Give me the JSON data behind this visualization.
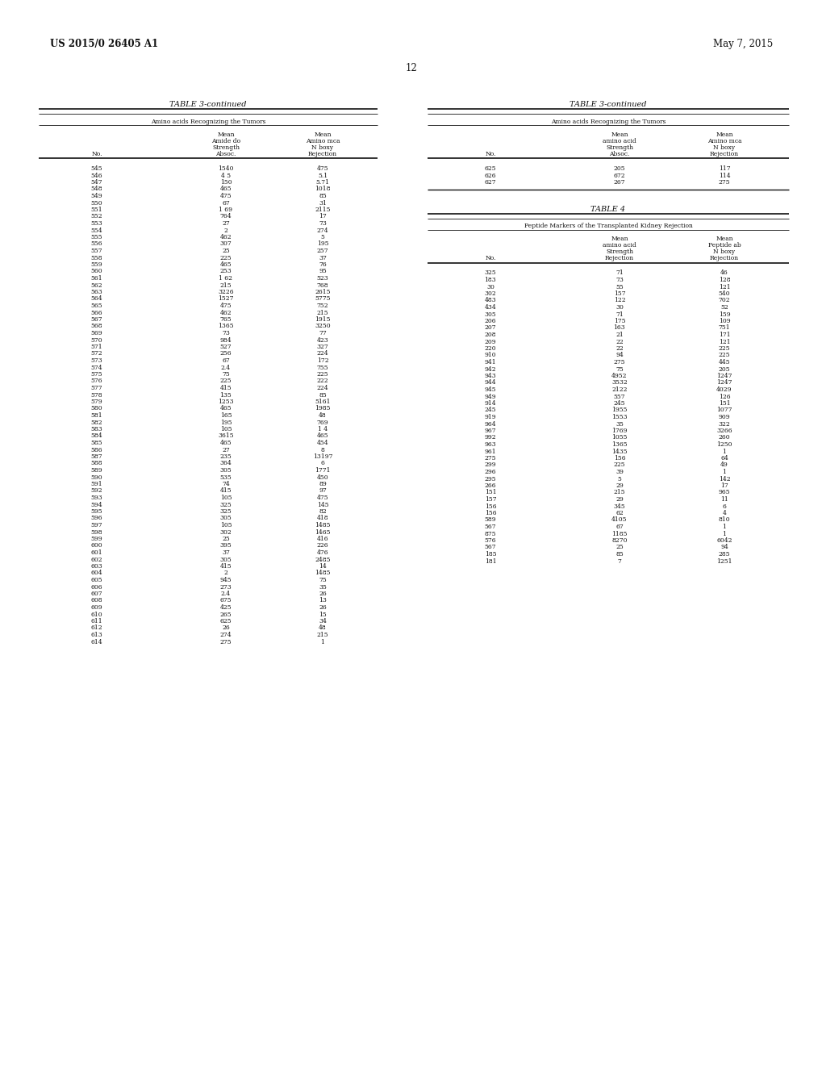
{
  "header_left": "US 2015/0 26405 A1",
  "header_right": "May 7, 2015",
  "page_number": "12",
  "bg_color": "#e8e8e8",
  "table3_title": "TABLE 3-continued",
  "table3_subtitle": "Amino acids Recognizing the Tumors",
  "table3_left_data": [
    [
      "545",
      "1540",
      "475"
    ],
    [
      "546",
      "4 5",
      "5.1"
    ],
    [
      "547",
      "150",
      "5.71"
    ],
    [
      "548",
      "465",
      "1018"
    ],
    [
      "549",
      "475",
      "85"
    ],
    [
      "550",
      "67",
      "31"
    ],
    [
      "551",
      "1 69",
      "2115"
    ],
    [
      "552",
      "764",
      "17"
    ],
    [
      "553",
      "27",
      "73"
    ],
    [
      "554",
      "2",
      "274"
    ],
    [
      "555",
      "462",
      "5"
    ],
    [
      "556",
      "307",
      "195"
    ],
    [
      "557",
      "25",
      "257"
    ],
    [
      "558",
      "225",
      "37"
    ],
    [
      "559",
      "465",
      "76"
    ],
    [
      "560",
      "253",
      "95"
    ],
    [
      "561",
      "1 62",
      "523"
    ],
    [
      "562",
      "215",
      "768"
    ],
    [
      "563",
      "3226",
      "2615"
    ],
    [
      "564",
      "1527",
      "5775"
    ],
    [
      "565",
      "475",
      "752"
    ],
    [
      "566",
      "462",
      "215"
    ],
    [
      "567",
      "765",
      "1915"
    ],
    [
      "568",
      "1365",
      "3250"
    ],
    [
      "569",
      "73",
      "77"
    ],
    [
      "570",
      "984",
      "423"
    ],
    [
      "571",
      "527",
      "327"
    ],
    [
      "572",
      "256",
      "224"
    ],
    [
      "573",
      "67",
      "172"
    ],
    [
      "574",
      "2.4",
      "755"
    ],
    [
      "575",
      "75",
      "225"
    ],
    [
      "576",
      "225",
      "222"
    ],
    [
      "577",
      "415",
      "224"
    ],
    [
      "578",
      "135",
      "85"
    ],
    [
      "579",
      "1253",
      "5161"
    ],
    [
      "580",
      "465",
      "1985"
    ],
    [
      "581",
      "165",
      "48"
    ],
    [
      "582",
      "195",
      "769"
    ],
    [
      "583",
      "105",
      "1 4"
    ],
    [
      "584",
      "3615",
      "465"
    ],
    [
      "585",
      "465",
      "454"
    ],
    [
      "586",
      "27",
      "8"
    ],
    [
      "587",
      "235",
      "13197"
    ],
    [
      "588",
      "364",
      "6"
    ],
    [
      "589",
      "305",
      "1771"
    ],
    [
      "590",
      "535",
      "450"
    ],
    [
      "591",
      "74",
      "89"
    ],
    [
      "592",
      "415",
      "97"
    ],
    [
      "593",
      "105",
      "475"
    ],
    [
      "594",
      "325",
      "145"
    ],
    [
      "595",
      "325",
      "82"
    ],
    [
      "596",
      "305",
      "418"
    ],
    [
      "597",
      "105",
      "1485"
    ],
    [
      "598",
      "302",
      "1465"
    ],
    [
      "599",
      "25",
      "416"
    ],
    [
      "600",
      "395",
      "226"
    ],
    [
      "601",
      "37",
      "476"
    ],
    [
      "602",
      "305",
      "2485"
    ],
    [
      "603",
      "415",
      "14"
    ],
    [
      "604",
      "2",
      "1485"
    ],
    [
      "605",
      "945",
      "75"
    ],
    [
      "606",
      "273",
      "35"
    ],
    [
      "607",
      "2.4",
      "26"
    ],
    [
      "608",
      "675",
      "13"
    ],
    [
      "609",
      "425",
      "26"
    ],
    [
      "610",
      "265",
      "15"
    ],
    [
      "611",
      "625",
      "34"
    ],
    [
      "612",
      "26",
      "48"
    ],
    [
      "613",
      "274",
      "215"
    ],
    [
      "614",
      "275",
      "1"
    ]
  ],
  "table3_right_title": "TABLE 3-continued",
  "table3_right_subtitle": "Amino acids Recognizing the Tumors",
  "table3_right_data": [
    [
      "625",
      "205",
      "117"
    ],
    [
      "626",
      "672",
      "114"
    ],
    [
      "627",
      "267",
      "275"
    ]
  ],
  "table4_title": "TABLE 4",
  "table4_subtitle": "Peptide Markers of the Transplanted Kidney Rejection",
  "table4_data": [
    [
      "325",
      "71",
      "46"
    ],
    [
      "183",
      "73",
      "128"
    ],
    [
      "30",
      "55",
      "121"
    ],
    [
      "302",
      "157",
      "540"
    ],
    [
      "483",
      "122",
      "702"
    ],
    [
      "434",
      "30",
      "52"
    ],
    [
      "305",
      "71",
      "159"
    ],
    [
      "206",
      "175",
      "109"
    ],
    [
      "207",
      "163",
      "751"
    ],
    [
      "208",
      "21",
      "171"
    ],
    [
      "209",
      "22",
      "121"
    ],
    [
      "220",
      "22",
      "225"
    ],
    [
      "910",
      "94",
      "225"
    ],
    [
      "941",
      "275",
      "445"
    ],
    [
      "942",
      "75",
      "205"
    ],
    [
      "943",
      "4952",
      "1247"
    ],
    [
      "944",
      "3532",
      "1247"
    ],
    [
      "945",
      "2122",
      "4029"
    ],
    [
      "949",
      "557",
      "126"
    ],
    [
      "914",
      "245",
      "151"
    ],
    [
      "245",
      "1955",
      "1077"
    ],
    [
      "919",
      "1553",
      "909"
    ],
    [
      "964",
      "35",
      "322"
    ],
    [
      "967",
      "1769",
      "3266"
    ],
    [
      "992",
      "1055",
      "260"
    ],
    [
      "963",
      "1365",
      "1250"
    ],
    [
      "961",
      "1435",
      "1"
    ],
    [
      "275",
      "156",
      "64"
    ],
    [
      "299",
      "225",
      "49"
    ],
    [
      "296",
      "39",
      "1"
    ],
    [
      "295",
      "5",
      "142"
    ],
    [
      "266",
      "29",
      "17"
    ],
    [
      "151",
      "215",
      "965"
    ],
    [
      "157",
      "29",
      "11"
    ],
    [
      "156",
      "345",
      "6"
    ],
    [
      "156",
      "62",
      "4"
    ],
    [
      "589",
      "4105",
      "810"
    ],
    [
      "567",
      "67",
      "1"
    ],
    [
      "875",
      "1185",
      "1"
    ],
    [
      "576",
      "8270",
      "6042"
    ],
    [
      "567",
      "25",
      "94"
    ],
    [
      "185",
      "85",
      "285"
    ],
    [
      "181",
      "7",
      "1251"
    ]
  ]
}
